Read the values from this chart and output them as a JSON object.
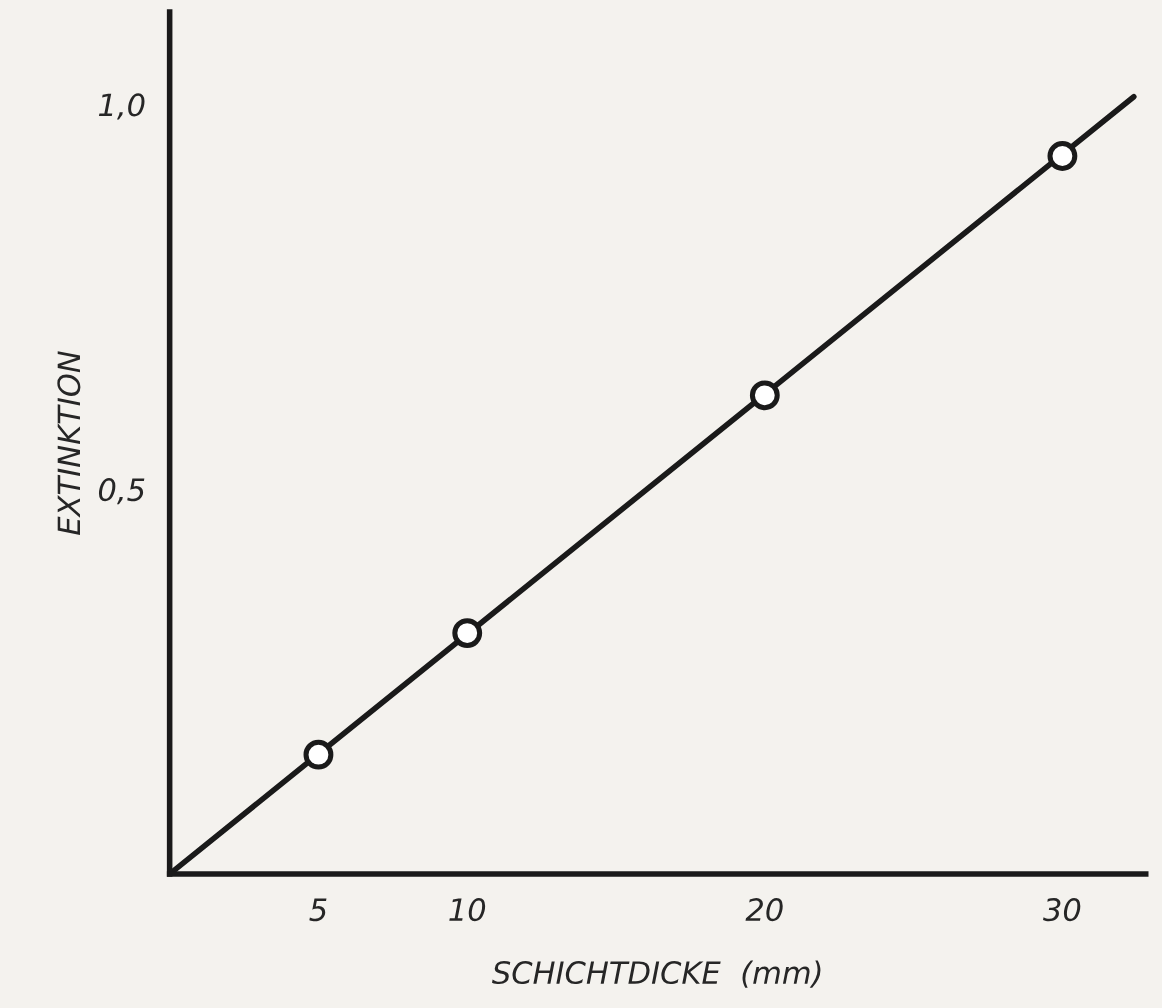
{
  "chart_data": {
    "type": "scatter",
    "xlabel": "SCHICHTDICKE  (mm)",
    "ylabel": "EXTINKTION",
    "series": [
      {
        "type": "line",
        "color": "#1a1a1a",
        "x": [
          0,
          32.4
        ],
        "values": [
          0,
          1.01
        ],
        "marker": "none",
        "line_style": "solid"
      },
      {
        "color": "#1a1a1a",
        "x": [
          5,
          10,
          20,
          30
        ],
        "values": [
          0.155,
          0.313,
          0.622,
          0.933
        ],
        "marker": "circle"
      }
    ],
    "xlim": [
      0,
      32.8
    ],
    "ylim": [
      0,
      1.12
    ],
    "xticks": [
      5,
      10,
      20,
      30
    ],
    "yticks": [
      {
        "value": 0.5,
        "label": "0,5"
      },
      {
        "value": 1.0,
        "label": "1,0"
      }
    ],
    "grid": false,
    "legend": false
  }
}
